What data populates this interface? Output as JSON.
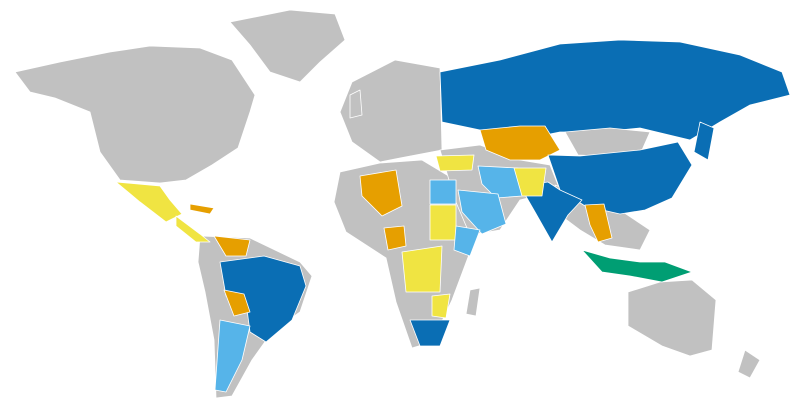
{
  "map": {
    "fills": [
      "#c1c1c1",
      "#0a6eb4",
      "#e69f00",
      "#f0e442",
      "#56b4e9",
      "#009e73"
    ]
  }
}
